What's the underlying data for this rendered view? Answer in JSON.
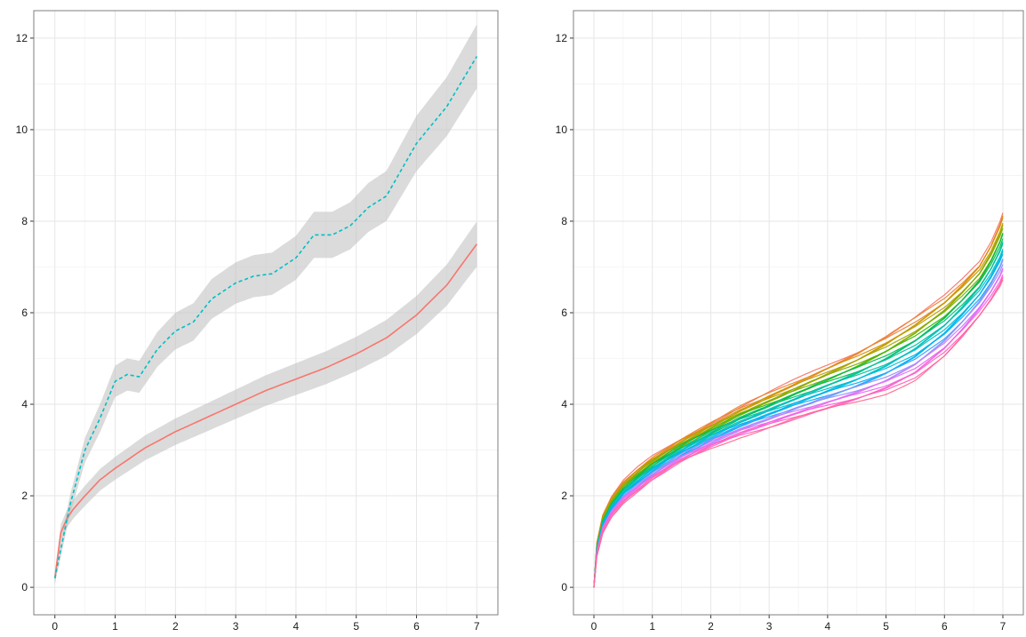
{
  "chart_data": [
    {
      "type": "line",
      "title": "",
      "xlabel": "",
      "ylabel": "",
      "xlim": [
        -0.35,
        7.35
      ],
      "ylim": [
        -0.6,
        12.6
      ],
      "x_ticks": [
        "0",
        "1",
        "2",
        "3",
        "4",
        "5",
        "6",
        "7"
      ],
      "y_ticks": [
        "0",
        "2",
        "4",
        "6",
        "8",
        "10",
        "12"
      ],
      "grid": true,
      "legend": "none",
      "series": [
        {
          "color": "#F8766D",
          "line_style": "solid",
          "confidence_band": true,
          "x": [
            0,
            0.1,
            0.2,
            0.3,
            0.5,
            0.75,
            1,
            1.5,
            2,
            2.5,
            3,
            3.5,
            4,
            4.5,
            5,
            5.5,
            6,
            6.5,
            7
          ],
          "y": [
            0.2,
            1.2,
            1.5,
            1.7,
            2.0,
            2.35,
            2.6,
            3.05,
            3.4,
            3.7,
            4.0,
            4.3,
            4.55,
            4.8,
            5.1,
            5.45,
            5.95,
            6.6,
            7.5
          ]
        },
        {
          "color": "#00BFC4",
          "line_style": "dashed",
          "confidence_band": true,
          "x": [
            0,
            0.25,
            0.5,
            0.75,
            1,
            1.2,
            1.4,
            1.7,
            2,
            2.3,
            2.6,
            3,
            3.3,
            3.6,
            4,
            4.3,
            4.6,
            4.9,
            5.2,
            5.5,
            6,
            6.5,
            7
          ],
          "y": [
            0.2,
            1.8,
            3.0,
            3.7,
            4.5,
            4.65,
            4.6,
            5.2,
            5.6,
            5.8,
            6.3,
            6.65,
            6.8,
            6.85,
            7.2,
            7.7,
            7.7,
            7.9,
            8.3,
            8.55,
            9.7,
            10.5,
            11.6
          ]
        }
      ]
    },
    {
      "type": "line",
      "title": "",
      "xlabel": "",
      "ylabel": "",
      "xlim": [
        -0.35,
        7.35
      ],
      "ylim": [
        -0.6,
        12.6
      ],
      "x_ticks": [
        "0",
        "1",
        "2",
        "3",
        "4",
        "5",
        "6",
        "7"
      ],
      "y_ticks": [
        "0",
        "2",
        "4",
        "6",
        "8",
        "10",
        "12"
      ],
      "grid": true,
      "legend": "none",
      "family_description_note_removed": true,
      "series_count": 30,
      "x": [
        0,
        0.05,
        0.15,
        0.3,
        0.5,
        0.75,
        1,
        1.5,
        2,
        2.5,
        3,
        3.5,
        4,
        4.5,
        5,
        5.5,
        6,
        6.3,
        6.6,
        6.8,
        6.95,
        7
      ],
      "y_low": [
        0,
        0.7,
        1.2,
        1.55,
        1.85,
        2.1,
        2.35,
        2.75,
        3.05,
        3.3,
        3.5,
        3.7,
        3.88,
        4.05,
        4.25,
        4.55,
        5.05,
        5.45,
        5.9,
        6.25,
        6.55,
        6.7
      ],
      "y_high": [
        0,
        0.95,
        1.55,
        1.95,
        2.3,
        2.6,
        2.85,
        3.25,
        3.6,
        3.95,
        4.25,
        4.55,
        4.85,
        5.15,
        5.5,
        5.9,
        6.35,
        6.7,
        7.1,
        7.55,
        8.0,
        8.2
      ],
      "colors": [
        "#F8766D",
        "#EA8331",
        "#D89000",
        "#C09B00",
        "#A3A500",
        "#7CAE00",
        "#39B600",
        "#00BB4E",
        "#00BF7D",
        "#00C1A3",
        "#00BFC4",
        "#00BAE0",
        "#00B0F6",
        "#35A2FF",
        "#9590FF",
        "#C77CFF",
        "#E76BF3",
        "#FA62DB",
        "#FF62BC",
        "#FF6C91"
      ]
    }
  ]
}
